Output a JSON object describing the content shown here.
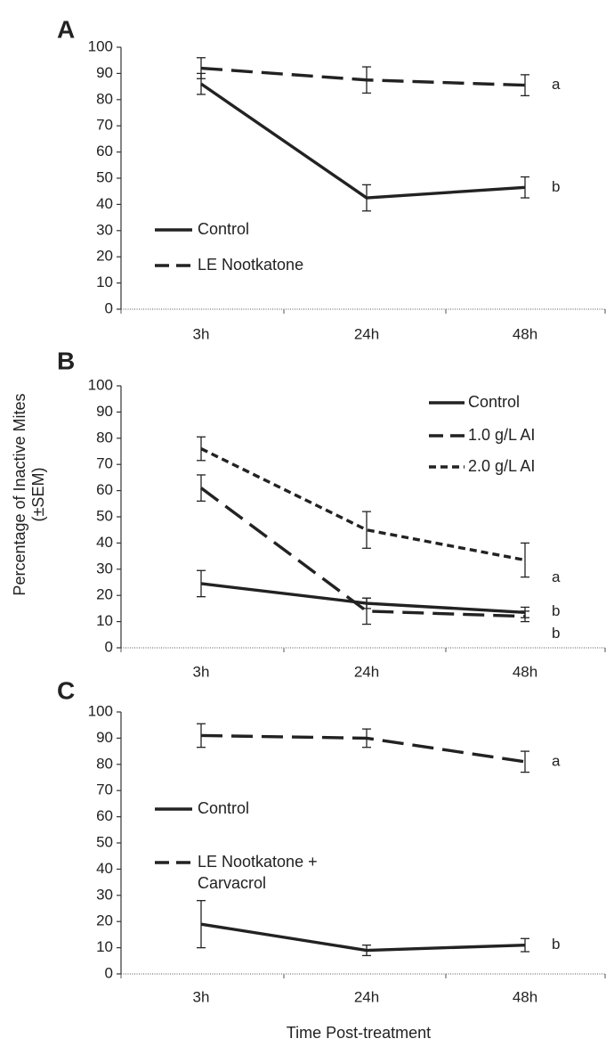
{
  "figure": {
    "ylabel_lines": [
      "Percentage of Inactive Mites",
      "(±SEM)"
    ],
    "xlabel": "Time Post-treatment"
  },
  "chart_data": [
    {
      "type": "line",
      "panel": "A",
      "categories": [
        "3h",
        "24h",
        "48h"
      ],
      "ylim": [
        0,
        100
      ],
      "yticks": [
        0,
        10,
        20,
        30,
        40,
        50,
        60,
        70,
        80,
        90,
        100
      ],
      "grid": false,
      "legend_position": "bottom-left",
      "series": [
        {
          "name": "Control",
          "style": "solid",
          "color": "#222222",
          "values": [
            86,
            42.5,
            46.5
          ],
          "errors": [
            4,
            5,
            4
          ],
          "label": "b"
        },
        {
          "name": "LE Nootkatone",
          "style": "long-dash",
          "color": "#222222",
          "values": [
            92,
            87.5,
            85.5
          ],
          "errors": [
            4,
            5,
            4
          ],
          "label": "a"
        }
      ]
    },
    {
      "type": "line",
      "panel": "B",
      "categories": [
        "3h",
        "24h",
        "48h"
      ],
      "ylim": [
        0,
        100
      ],
      "yticks": [
        0,
        10,
        20,
        30,
        40,
        50,
        60,
        70,
        80,
        90,
        100
      ],
      "grid": false,
      "legend_position": "top-right",
      "series": [
        {
          "name": "Control",
          "style": "solid",
          "color": "#222222",
          "values": [
            24.5,
            17,
            13.5
          ],
          "errors": [
            5,
            2,
            2
          ],
          "label": "b"
        },
        {
          "name": "1.0 g/L AI",
          "style": "long-dash",
          "color": "#222222",
          "values": [
            61,
            14,
            12
          ],
          "errors": [
            5,
            5,
            2
          ],
          "label": "b"
        },
        {
          "name": "2.0 g/L AI",
          "style": "short-dash",
          "color": "#222222",
          "values": [
            76,
            45,
            33.5
          ],
          "errors": [
            4.5,
            7,
            6.5
          ],
          "label": "a"
        }
      ]
    },
    {
      "type": "line",
      "panel": "C",
      "categories": [
        "3h",
        "24h",
        "48h"
      ],
      "ylim": [
        0,
        100
      ],
      "yticks": [
        0,
        10,
        20,
        30,
        40,
        50,
        60,
        70,
        80,
        90,
        100
      ],
      "grid": false,
      "legend_position": "left",
      "series": [
        {
          "name": "Control",
          "style": "solid",
          "color": "#222222",
          "values": [
            19,
            9,
            11
          ],
          "errors": [
            9,
            2,
            2.5
          ],
          "label": "b"
        },
        {
          "name": "LE Nootkatone +\nCarvacrol",
          "style": "long-dash",
          "color": "#222222",
          "values": [
            91,
            90,
            81
          ],
          "errors": [
            4.5,
            3.5,
            4
          ],
          "label": "a"
        }
      ]
    }
  ]
}
